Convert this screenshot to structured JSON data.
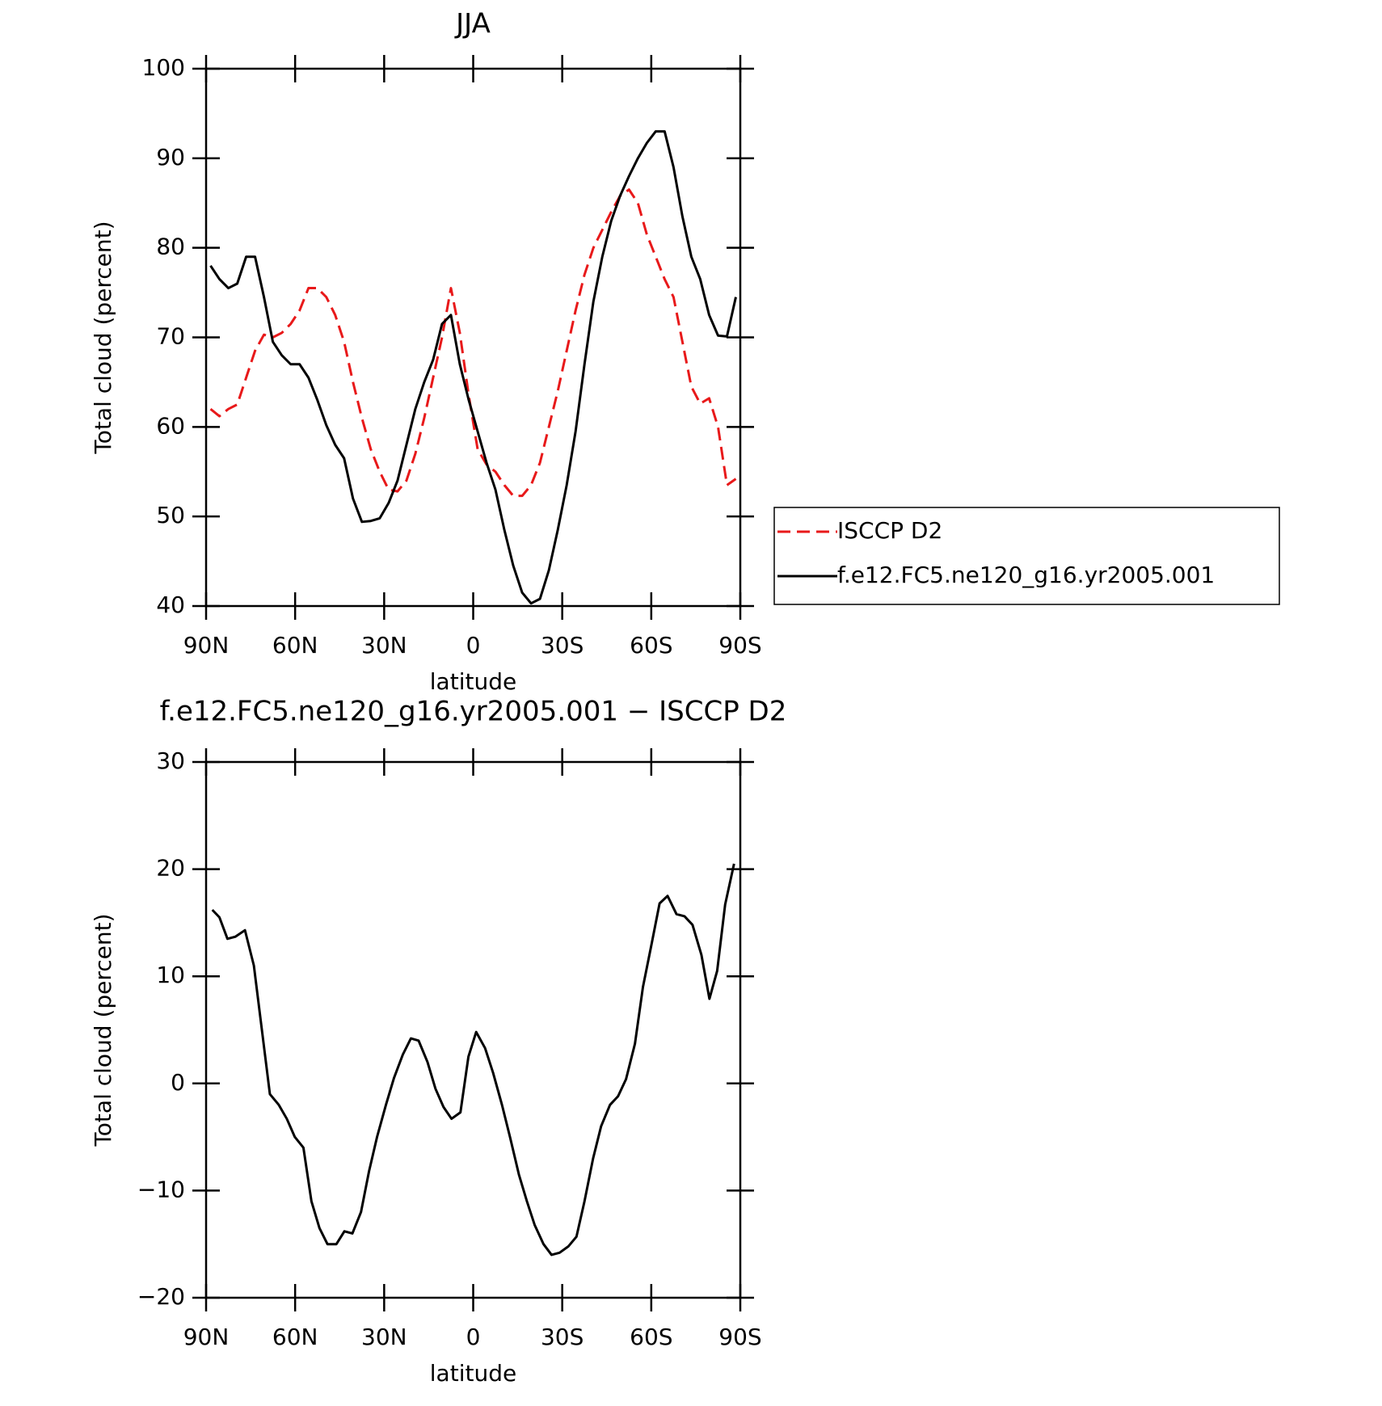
{
  "chart_data": [
    {
      "type": "line",
      "title": "JJA",
      "xlabel": "latitude",
      "ylabel": "Total cloud (percent)",
      "xlim": [
        90,
        -90
      ],
      "ylim": [
        40,
        100
      ],
      "xticks": [
        {
          "value": 90,
          "label": "90N"
        },
        {
          "value": 60,
          "label": "60N"
        },
        {
          "value": 30,
          "label": "30N"
        },
        0,
        {
          "value": -30,
          "label": "30S"
        },
        {
          "value": -60,
          "label": "60S"
        },
        {
          "value": -90,
          "label": "90S"
        }
      ],
      "yticks": [
        40,
        50,
        60,
        70,
        80,
        90,
        100
      ],
      "legend": "right",
      "x": [
        88.5,
        85.5,
        82.5,
        79.5,
        76.5,
        73.5,
        70.5,
        67.5,
        64.5,
        61.5,
        58.5,
        55.5,
        52.5,
        49.5,
        46.5,
        43.5,
        40.5,
        37.5,
        34.5,
        31.5,
        28.5,
        25.5,
        22.5,
        19.5,
        16.5,
        13.5,
        10.5,
        7.5,
        4.5,
        1.5,
        -1.5,
        -4.5,
        -7.5,
        -10.5,
        -13.5,
        -16.5,
        -19.5,
        -22.5,
        -25.5,
        -28.5,
        -31.5,
        -34.5,
        -37.5,
        -40.5,
        -43.5,
        -46.5,
        -49.5,
        -52.5,
        -55.5,
        -58.5,
        -61.5,
        -64.5,
        -67.5,
        -70.5,
        -73.5,
        -76.5,
        -79.5,
        -82.5,
        -85.5,
        -88.5
      ],
      "series": [
        {
          "name": "ISCCP D2",
          "color": "#e8191a",
          "style": "dashed",
          "values": [
            62,
            61.2,
            62,
            62.5,
            65.5,
            68.5,
            70.3,
            70,
            70.5,
            71.5,
            73,
            75.5,
            75.5,
            74.5,
            72.5,
            69.5,
            65,
            61,
            57.5,
            55,
            53,
            52.8,
            54,
            57,
            61,
            65.5,
            70,
            75.5,
            70.5,
            63.5,
            57.5,
            55.8,
            55,
            53.5,
            52.3,
            52.3,
            53.5,
            56,
            60,
            64,
            68.5,
            73,
            77,
            80,
            82,
            84,
            85.8,
            86.5,
            85,
            81.5,
            79,
            76.5,
            74.5,
            69.5,
            64.5,
            62.6,
            63.2,
            60,
            53.5,
            54.2
          ]
        },
        {
          "name": "f.e12.FC5.ne120_g16.yr2005.001",
          "color": "#000000",
          "style": "solid",
          "values": [
            78,
            76.5,
            75.5,
            76,
            79,
            79,
            74.5,
            69.5,
            68,
            67,
            67,
            65.5,
            63,
            60.2,
            58,
            56.5,
            52,
            49.4,
            49.5,
            49.8,
            51.5,
            54,
            58,
            62,
            65,
            67.5,
            71.5,
            72.5,
            67,
            63,
            59.5,
            56,
            53,
            48.5,
            44.5,
            41.5,
            40.3,
            40.8,
            44,
            48.5,
            53.5,
            59.5,
            67,
            74,
            79,
            83,
            85.8,
            88,
            90,
            91.7,
            93,
            93,
            89,
            83.5,
            79,
            76.5,
            72.5,
            70.2,
            70.1,
            74.5
          ]
        }
      ]
    },
    {
      "type": "line",
      "title": "f.e12.FC5.ne120_g16.yr2005.001 − ISCCP D2",
      "xlabel": "latitude",
      "ylabel": "Total cloud (percent)",
      "xlim": [
        90,
        -90
      ],
      "ylim": [
        -20,
        30
      ],
      "xticks": [
        {
          "value": 90,
          "label": "90N"
        },
        {
          "value": 60,
          "label": "60N"
        },
        {
          "value": 30,
          "label": "30N"
        },
        0,
        {
          "value": -30,
          "label": "30S"
        },
        {
          "value": -60,
          "label": "60S"
        },
        {
          "value": -90,
          "label": "90S"
        }
      ],
      "yticks": [
        {
          "value": -20,
          "label": "−20"
        },
        {
          "value": -10,
          "label": "−10"
        },
        0,
        10,
        20,
        30
      ],
      "x": [
        87.9,
        85.5,
        82.8,
        80.1,
        76.9,
        73.9,
        71.2,
        68.5,
        65.5,
        62.8,
        60.1,
        57.2,
        54.5,
        51.8,
        49.1,
        46.1,
        43.4,
        40.7,
        37.8,
        35.1,
        32.4,
        29.4,
        26.7,
        23.7,
        21.0,
        18.4,
        15.4,
        12.7,
        10.0,
        7.3,
        4.3,
        1.6,
        -1.0,
        -4.0,
        -6.7,
        -9.7,
        -12.4,
        -15.4,
        -18.1,
        -20.7,
        -23.7,
        -26.4,
        -29.1,
        -32.1,
        -34.8,
        -37.5,
        -40.4,
        -43.1,
        -46.1,
        -48.8,
        -51.5,
        -54.5,
        -57.2,
        -60.1,
        -62.8,
        -65.5,
        -68.5,
        -71.2,
        -73.9,
        -76.9,
        -79.6,
        -82.2,
        -84.9,
        -87.9
      ],
      "series": [
        {
          "color": "#000000",
          "style": "solid",
          "values": [
            16.2,
            15.5,
            13.5,
            13.7,
            14.3,
            11,
            5,
            -1,
            -2,
            -3.3,
            -5,
            -6,
            -11,
            -13.5,
            -15,
            -15,
            -13.8,
            -14,
            -12,
            -8.2,
            -5,
            -2,
            0.5,
            2.7,
            4.2,
            4,
            2,
            -0.5,
            -2.2,
            -3.3,
            -2.7,
            2.5,
            4.8,
            3.3,
            1,
            -2,
            -5,
            -8.5,
            -11,
            -13.2,
            -15,
            -16,
            -15.8,
            -15.2,
            -14.3,
            -11,
            -7,
            -4,
            -2,
            -1.2,
            0.4,
            3.7,
            9,
            13,
            16.8,
            17.5,
            15.8,
            15.6,
            14.8,
            12,
            7.9,
            10.5,
            16.7,
            20.5
          ]
        }
      ]
    }
  ]
}
